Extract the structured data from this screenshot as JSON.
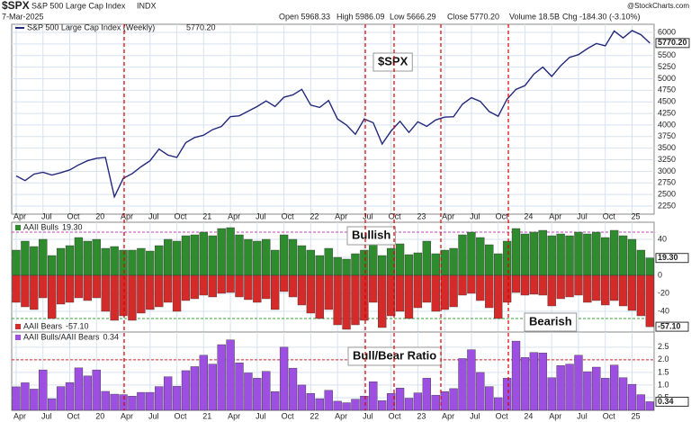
{
  "header": {
    "symbol": "$SPX",
    "name": "S&P 500 Large Cap Index",
    "exchange": "INDX",
    "date": "7-Mar-2025",
    "open": "Open 5968.33",
    "high": "High 5986.09",
    "low": "Low 5666.29",
    "close": "Close 5770.20",
    "volume": "Volume 18.5B",
    "change": "Chg -184.30 (-3.10%)",
    "source": "@StockCharts.com"
  },
  "chart_data": [
    {
      "type": "line",
      "annotation": "$SPX",
      "series": [
        {
          "name": "S&P 500 Large Cap Index (Weekly)",
          "last_label": "5770.20",
          "color": "#23287a",
          "values": [
            2900,
            2800,
            2940,
            2980,
            2920,
            2970,
            3030,
            3140,
            3230,
            3280,
            3300,
            2450,
            2850,
            2950,
            3100,
            3230,
            3480,
            3350,
            3300,
            3620,
            3730,
            3780,
            3900,
            3970,
            4180,
            4200,
            4300,
            4400,
            4520,
            4400,
            4600,
            4650,
            4770,
            4430,
            4380,
            4530,
            4130,
            4000,
            3800,
            4130,
            4050,
            3590,
            3870,
            4080,
            3840,
            4070,
            3970,
            4110,
            4170,
            4180,
            4450,
            4590,
            4510,
            4290,
            4190,
            4560,
            4770,
            4850,
            5100,
            5250,
            5050,
            5280,
            5460,
            5520,
            5650,
            5760,
            5710,
            6030,
            5880,
            6040,
            5950,
            5770
          ]
        }
      ],
      "categories": [
        "Apr",
        null,
        null,
        "Jul",
        null,
        null,
        "Oct",
        null,
        null,
        "20",
        null,
        null,
        "Apr",
        null,
        null,
        "Jul",
        null,
        null,
        "Oct",
        null,
        null,
        "21",
        null,
        null,
        "Apr",
        null,
        null,
        "Jul",
        null,
        null,
        "Oct",
        null,
        null,
        "22",
        null,
        null,
        "Apr",
        null,
        null,
        "Jul",
        null,
        null,
        "Oct",
        null,
        null,
        "23",
        null,
        null,
        "Apr",
        null,
        null,
        "Jul",
        null,
        null,
        "Oct",
        null,
        null,
        "24",
        null,
        null,
        "Apr",
        null,
        null,
        "Jul",
        null,
        null,
        "Oct",
        null,
        null,
        "25",
        null,
        null
      ],
      "ylim": [
        2075,
        6175
      ],
      "yticks": [
        2250,
        2500,
        2750,
        3000,
        3250,
        3500,
        3750,
        4000,
        4250,
        4500,
        4750,
        5000,
        5250,
        5500,
        5750,
        6000
      ],
      "grid": true
    },
    {
      "type": "bar",
      "annotations": [
        "Bullish",
        "Bearish"
      ],
      "series": [
        {
          "name": "AAII Bulls",
          "last_label": "19.30",
          "color": "#2e8b2e",
          "values": [
            28,
            38,
            32,
            40,
            22,
            30,
            33,
            42,
            38,
            40,
            30,
            32,
            28,
            28,
            30,
            27,
            33,
            40,
            38,
            44,
            45,
            48,
            44,
            52,
            53,
            45,
            40,
            38,
            40,
            28,
            45,
            40,
            33,
            28,
            22,
            30,
            20,
            18,
            24,
            28,
            34,
            22,
            30,
            35,
            23,
            25,
            38,
            24,
            28,
            30,
            45,
            48,
            42,
            34,
            24,
            38,
            52,
            46,
            48,
            50,
            44,
            46,
            44,
            48,
            46,
            48,
            42,
            50,
            44,
            40,
            28,
            19.3
          ]
        },
        {
          "name": "AAII Bears",
          "last_label": "-57.10",
          "color": "#d42a2a",
          "values": [
            -30,
            -35,
            -38,
            -25,
            -48,
            -32,
            -30,
            -25,
            -28,
            -25,
            -40,
            -50,
            -45,
            -50,
            -42,
            -38,
            -35,
            -30,
            -40,
            -28,
            -26,
            -22,
            -24,
            -20,
            -19,
            -24,
            -27,
            -30,
            -26,
            -38,
            -18,
            -24,
            -33,
            -42,
            -48,
            -38,
            -55,
            -60,
            -55,
            -50,
            -30,
            -58,
            -45,
            -40,
            -48,
            -36,
            -30,
            -40,
            -38,
            -35,
            -22,
            -20,
            -28,
            -36,
            -48,
            -30,
            -19,
            -22,
            -21,
            -22,
            -34,
            -26,
            -24,
            -22,
            -30,
            -28,
            -33,
            -28,
            -34,
            -39,
            -45,
            -57.1
          ]
        }
      ],
      "ylim": [
        -63,
        59
      ],
      "yticks": [
        -40,
        -20,
        0,
        20,
        40
      ],
      "ref_lines": [
        {
          "value": 48,
          "color": "#c040c0"
        },
        {
          "value": -48,
          "color": "#33a033"
        }
      ],
      "grid": true
    },
    {
      "type": "bar",
      "annotation": "Bull/Bear Ratio",
      "series": [
        {
          "name": "AAII Bulls/AAII Bears",
          "last_label": "0.34",
          "color": "#9c4fe0",
          "values": [
            0.93,
            1.09,
            0.84,
            1.6,
            0.46,
            0.94,
            1.1,
            1.68,
            1.36,
            1.6,
            0.75,
            0.64,
            0.62,
            0.56,
            0.71,
            0.71,
            0.94,
            1.33,
            0.95,
            1.57,
            1.73,
            2.18,
            1.83,
            2.6,
            2.79,
            1.88,
            1.48,
            1.27,
            1.54,
            0.74,
            2.5,
            1.67,
            1.0,
            0.67,
            0.46,
            0.79,
            0.36,
            0.3,
            0.44,
            0.56,
            1.13,
            0.38,
            0.67,
            0.88,
            0.48,
            0.69,
            1.27,
            0.6,
            0.74,
            0.86,
            2.05,
            2.4,
            1.5,
            0.94,
            0.5,
            1.27,
            2.74,
            2.09,
            2.29,
            2.27,
            1.29,
            1.77,
            1.83,
            2.18,
            1.53,
            1.71,
            1.27,
            1.79,
            1.29,
            1.03,
            0.62,
            0.34
          ]
        }
      ],
      "categories": [
        "Apr",
        null,
        null,
        "Jul",
        null,
        null,
        "Oct",
        null,
        null,
        "20",
        null,
        null,
        "Apr",
        null,
        null,
        "Jul",
        null,
        null,
        "Oct",
        null,
        null,
        "21",
        null,
        null,
        "Apr",
        null,
        null,
        "Jul",
        null,
        null,
        "Oct",
        null,
        null,
        "22",
        null,
        null,
        "Apr",
        null,
        null,
        "Jul",
        null,
        null,
        "Oct",
        null,
        null,
        "23",
        null,
        null,
        "Apr",
        null,
        null,
        "Jul",
        null,
        null,
        "Oct",
        null,
        null,
        "24",
        null,
        null,
        "Apr",
        null,
        null,
        "Jul",
        null,
        null,
        "Oct",
        null,
        null,
        "25",
        null,
        null
      ],
      "ylim": [
        0,
        3.1
      ],
      "yticks": [
        0.5,
        {
          "value": 1,
          "label": "1.0"
        },
        1.5,
        {
          "value": 2,
          "label": "2.0"
        },
        2.5
      ],
      "ref_lines": [
        {
          "value": 2,
          "color": "#d42a2a"
        }
      ],
      "grid": true
    }
  ]
}
